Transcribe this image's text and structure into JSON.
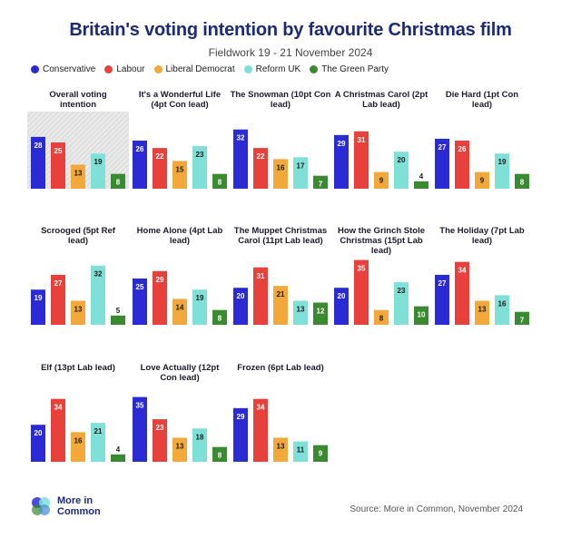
{
  "header": {
    "title": "Britain's voting intention by favourite Christmas film",
    "subtitle": "Fieldwork 19 - 21 November 2024"
  },
  "legend": [
    {
      "name": "Conservative",
      "color": "#2b2bd6"
    },
    {
      "name": "Labour",
      "color": "#e8413c"
    },
    {
      "name": "Liberal Democrat",
      "color": "#f3a83b"
    },
    {
      "name": "Reform UK",
      "color": "#7fe0d8"
    },
    {
      "name": "The Green Party",
      "color": "#3a8a32"
    }
  ],
  "chart_data": [
    {
      "type": "bar",
      "title": "Overall voting intention",
      "categories": [
        "Conservative",
        "Labour",
        "Liberal Democrat",
        "Reform UK",
        "The Green Party"
      ],
      "values": [
        28,
        25,
        13,
        19,
        8
      ],
      "highlight": true
    },
    {
      "type": "bar",
      "title": "It's a Wonderful Life (4pt Con lead)",
      "categories": [
        "Conservative",
        "Labour",
        "Liberal Democrat",
        "Reform UK",
        "The Green Party"
      ],
      "values": [
        26,
        22,
        15,
        23,
        8
      ]
    },
    {
      "type": "bar",
      "title": "The Snowman (10pt Con lead)",
      "categories": [
        "Conservative",
        "Labour",
        "Liberal Democrat",
        "Reform UK",
        "The Green Party"
      ],
      "values": [
        32,
        22,
        16,
        17,
        7
      ]
    },
    {
      "type": "bar",
      "title": "A Christmas Carol (2pt Lab lead)",
      "categories": [
        "Conservative",
        "Labour",
        "Liberal Democrat",
        "Reform UK",
        "The Green Party"
      ],
      "values": [
        29,
        31,
        9,
        20,
        4
      ]
    },
    {
      "type": "bar",
      "title": "Die Hard (1pt Con lead)",
      "categories": [
        "Conservative",
        "Labour",
        "Liberal Democrat",
        "Reform UK",
        "The Green Party"
      ],
      "values": [
        27,
        26,
        9,
        19,
        8
      ]
    },
    {
      "type": "bar",
      "title": "Scrooged (5pt Ref lead)",
      "categories": [
        "Conservative",
        "Labour",
        "Liberal Democrat",
        "Reform UK",
        "The Green Party"
      ],
      "values": [
        19,
        27,
        13,
        32,
        5
      ]
    },
    {
      "type": "bar",
      "title": "Home Alone (4pt Lab lead)",
      "categories": [
        "Conservative",
        "Labour",
        "Liberal Democrat",
        "Reform UK",
        "The Green Party"
      ],
      "values": [
        25,
        29,
        14,
        19,
        8
      ]
    },
    {
      "type": "bar",
      "title": "The Muppet Christmas Carol (11pt Lab lead)",
      "categories": [
        "Conservative",
        "Labour",
        "Liberal Democrat",
        "Reform UK",
        "The Green Party"
      ],
      "values": [
        20,
        31,
        21,
        13,
        12
      ]
    },
    {
      "type": "bar",
      "title": "How the Grinch Stole Christmas (15pt Lab lead)",
      "categories": [
        "Conservative",
        "Labour",
        "Liberal Democrat",
        "Reform UK",
        "The Green Party"
      ],
      "values": [
        20,
        35,
        8,
        23,
        10
      ]
    },
    {
      "type": "bar",
      "title": "The Holiday (7pt Lab lead)",
      "categories": [
        "Conservative",
        "Labour",
        "Liberal Democrat",
        "Reform UK",
        "The Green Party"
      ],
      "values": [
        27,
        34,
        13,
        16,
        7
      ]
    },
    {
      "type": "bar",
      "title": "Elf (13pt Lab lead)",
      "categories": [
        "Conservative",
        "Labour",
        "Liberal Democrat",
        "Reform UK",
        "The Green Party"
      ],
      "values": [
        20,
        34,
        16,
        21,
        4
      ]
    },
    {
      "type": "bar",
      "title": "Love Actually (12pt Con lead)",
      "categories": [
        "Conservative",
        "Labour",
        "Liberal Democrat",
        "Reform UK",
        "The Green Party"
      ],
      "values": [
        35,
        23,
        13,
        18,
        8
      ]
    },
    {
      "type": "bar",
      "title": "Frozen (6pt Lab lead)",
      "categories": [
        "Conservative",
        "Labour",
        "Liberal Democrat",
        "Reform UK",
        "The Green Party"
      ],
      "values": [
        29,
        34,
        13,
        11,
        9
      ]
    }
  ],
  "footer": {
    "logo_text": "More in Common",
    "source": "Source: More in Common, November 2024"
  }
}
